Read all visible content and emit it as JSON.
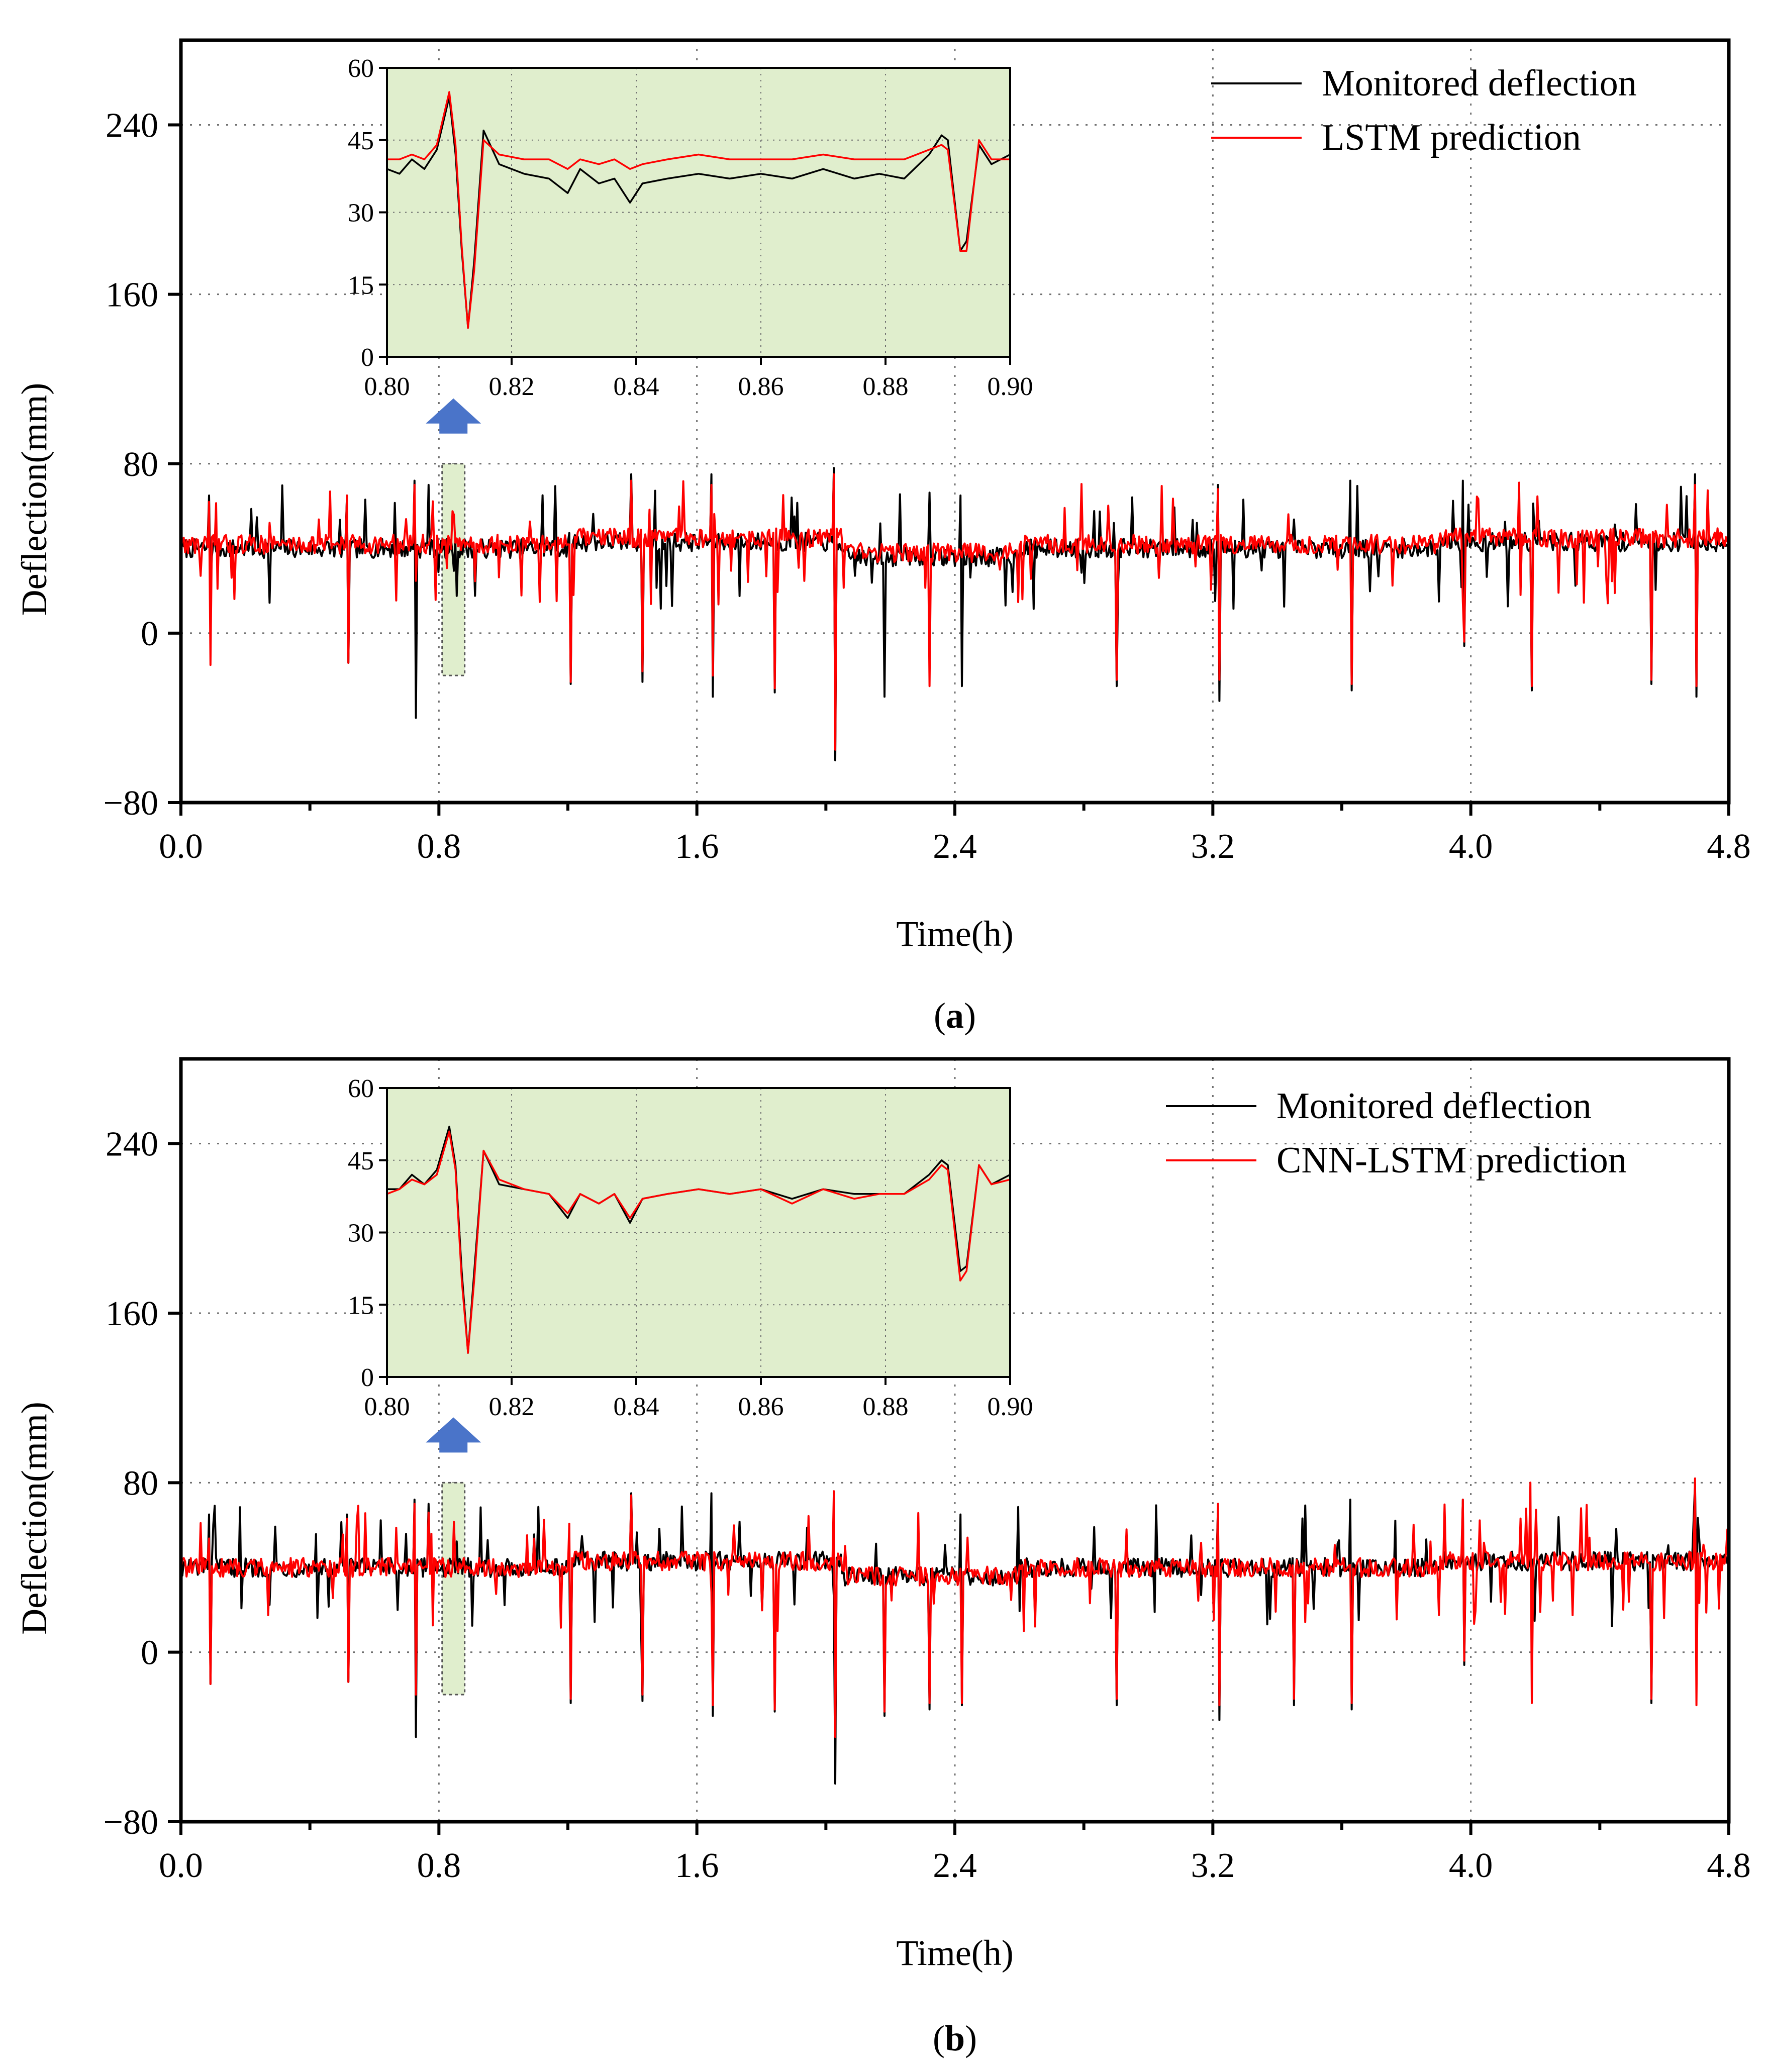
{
  "figure": {
    "panels": [
      {
        "caption_open": "(",
        "caption_letter": "a",
        "caption_close": ")",
        "legend": [
          {
            "label": "Monitored deflection",
            "color": "#000000"
          },
          {
            "label": "LSTM prediction",
            "color": "#ff0000"
          }
        ]
      },
      {
        "caption_open": "(",
        "caption_letter": "b",
        "caption_close": ")",
        "legend": [
          {
            "label": "Monitored deflection",
            "color": "#000000"
          },
          {
            "label": "CNN-LSTM prediction",
            "color": "#ff0000"
          }
        ]
      }
    ]
  },
  "colors": {
    "monitored": "#000000",
    "prediction": "#ff0000",
    "inset_background": "#e0eecd",
    "highlight_band": "#e0eecd",
    "arrow": "#4a74c9",
    "grid": "#707070"
  },
  "chart_data": [
    {
      "type": "line",
      "title": "",
      "xlabel": "Time(h)",
      "ylabel": "Deflection(mm)",
      "xlim": [
        0,
        4.8
      ],
      "ylim": [
        -80,
        280
      ],
      "xticks": [
        "0.0",
        "0.8",
        "1.6",
        "2.4",
        "3.2",
        "4.0",
        "4.8"
      ],
      "yticks": [
        "−80",
        "0",
        "80",
        "160",
        "240"
      ],
      "grid": true,
      "legend_position": "top-right",
      "highlight_range": {
        "x": [
          0.81,
          0.88
        ],
        "y": [
          -20,
          80
        ]
      },
      "series": [
        {
          "name": "Monitored deflection",
          "baseline": 40,
          "negative_spikes": [
            [
              0.09,
              -15
            ],
            [
              0.52,
              -14
            ],
            [
              0.73,
              -40
            ],
            [
              0.77,
              -17
            ],
            [
              1.21,
              -24
            ],
            [
              1.43,
              -23
            ],
            [
              1.65,
              -30
            ],
            [
              1.84,
              -28
            ],
            [
              2.03,
              -60
            ],
            [
              2.18,
              -30
            ],
            [
              2.32,
              -27
            ],
            [
              2.42,
              -25
            ],
            [
              2.9,
              -25
            ],
            [
              3.22,
              -32
            ],
            [
              3.45,
              -25
            ],
            [
              3.63,
              -27
            ],
            [
              3.98,
              -6
            ],
            [
              4.19,
              -27
            ],
            [
              4.56,
              -24
            ],
            [
              4.7,
              -30
            ]
          ],
          "positive_spikes": [
            [
              0.09,
              65
            ],
            [
              0.52,
              65
            ],
            [
              0.73,
              72
            ],
            [
              0.77,
              70
            ],
            [
              1.4,
              75
            ],
            [
              1.65,
              75
            ],
            [
              2.03,
              78
            ],
            [
              2.42,
              65
            ],
            [
              3.22,
              70
            ],
            [
              3.63,
              72
            ],
            [
              3.98,
              72
            ],
            [
              4.7,
              75
            ]
          ]
        },
        {
          "name": "LSTM prediction",
          "baseline": 42,
          "negative_spikes": [
            [
              0.09,
              -15
            ],
            [
              0.52,
              -14
            ],
            [
              0.73,
              -40
            ],
            [
              1.21,
              -23
            ],
            [
              1.43,
              -18
            ],
            [
              1.65,
              -20
            ],
            [
              1.84,
              -26
            ],
            [
              2.03,
              -55
            ],
            [
              2.32,
              -25
            ],
            [
              2.9,
              -22
            ],
            [
              3.22,
              -22
            ],
            [
              3.63,
              -24
            ],
            [
              3.98,
              -4
            ],
            [
              4.19,
              -25
            ],
            [
              4.56,
              -22
            ],
            [
              4.7,
              -25
            ]
          ],
          "positive_spikes": [
            [
              0.09,
              62
            ],
            [
              0.52,
              65
            ],
            [
              0.73,
              70
            ],
            [
              1.4,
              72
            ],
            [
              1.65,
              70
            ],
            [
              2.03,
              75
            ],
            [
              3.22,
              68
            ],
            [
              3.98,
              70
            ],
            [
              4.7,
              70
            ]
          ]
        }
      ],
      "inset": {
        "xlim": [
          0.8,
          0.9
        ],
        "ylim": [
          0,
          60
        ],
        "xticks": [
          "0.80",
          "0.82",
          "0.84",
          "0.86",
          "0.88",
          "0.90"
        ],
        "yticks": [
          "0",
          "15",
          "30",
          "45",
          "60"
        ],
        "series": [
          {
            "name": "Monitored deflection",
            "x": [
              0.8,
              0.802,
              0.804,
              0.806,
              0.808,
              0.81,
              0.811,
              0.812,
              0.813,
              0.814,
              0.8155,
              0.818,
              0.822,
              0.826,
              0.829,
              0.831,
              0.834,
              0.8365,
              0.839,
              0.841,
              0.845,
              0.85,
              0.855,
              0.86,
              0.865,
              0.87,
              0.875,
              0.879,
              0.883,
              0.887,
              0.889,
              0.89,
              0.892,
              0.893,
              0.895,
              0.897,
              0.9
            ],
            "y": [
              39,
              38,
              41,
              39,
              43,
              54,
              42,
              22,
              6,
              20,
              47,
              40,
              38,
              37,
              34,
              39,
              36,
              37,
              32,
              36,
              37,
              38,
              37,
              38,
              37,
              39,
              37,
              38,
              37,
              42,
              46,
              45,
              22,
              24,
              44,
              40,
              42
            ]
          },
          {
            "name": "LSTM prediction",
            "x": [
              0.8,
              0.802,
              0.804,
              0.806,
              0.808,
              0.81,
              0.811,
              0.812,
              0.813,
              0.814,
              0.8155,
              0.818,
              0.822,
              0.826,
              0.829,
              0.831,
              0.834,
              0.8365,
              0.839,
              0.841,
              0.845,
              0.85,
              0.855,
              0.86,
              0.865,
              0.87,
              0.875,
              0.879,
              0.883,
              0.887,
              0.889,
              0.89,
              0.892,
              0.893,
              0.895,
              0.897,
              0.9
            ],
            "y": [
              41,
              41,
              42,
              41,
              44,
              55,
              44,
              23,
              6,
              18,
              45,
              42,
              41,
              41,
              39,
              41,
              40,
              41,
              39,
              40,
              41,
              42,
              41,
              41,
              41,
              42,
              41,
              41,
              41,
              43,
              44,
              43,
              22,
              22,
              45,
              41,
              41
            ]
          }
        ]
      }
    },
    {
      "type": "line",
      "title": "",
      "xlabel": "Time(h)",
      "ylabel": "Deflection(mm)",
      "xlim": [
        0,
        4.8
      ],
      "ylim": [
        -80,
        280
      ],
      "xticks": [
        "0.0",
        "0.8",
        "1.6",
        "2.4",
        "3.2",
        "4.0",
        "4.8"
      ],
      "yticks": [
        "−80",
        "0",
        "80",
        "160",
        "240"
      ],
      "grid": true,
      "legend_position": "top-right",
      "highlight_range": {
        "x": [
          0.81,
          0.88
        ],
        "y": [
          -20,
          80
        ]
      },
      "series": [
        {
          "name": "Monitored deflection",
          "baseline": 40,
          "negative_spikes": [
            [
              0.09,
              -15
            ],
            [
              0.52,
              -14
            ],
            [
              0.73,
              -40
            ],
            [
              0.77,
              -17
            ],
            [
              1.21,
              -24
            ],
            [
              1.43,
              -23
            ],
            [
              1.65,
              -30
            ],
            [
              1.84,
              -28
            ],
            [
              2.03,
              -62
            ],
            [
              2.18,
              -30
            ],
            [
              2.32,
              -27
            ],
            [
              2.42,
              -25
            ],
            [
              2.9,
              -25
            ],
            [
              3.22,
              -32
            ],
            [
              3.45,
              -25
            ],
            [
              3.63,
              -27
            ],
            [
              3.98,
              -6
            ],
            [
              4.19,
              -27
            ],
            [
              4.56,
              -24
            ],
            [
              4.7,
              -30
            ]
          ],
          "positive_spikes": [
            [
              0.09,
              65
            ],
            [
              0.52,
              65
            ],
            [
              0.73,
              72
            ],
            [
              0.77,
              70
            ],
            [
              1.4,
              75
            ],
            [
              1.65,
              75
            ],
            [
              2.03,
              78
            ],
            [
              2.42,
              65
            ],
            [
              3.22,
              70
            ],
            [
              3.63,
              72
            ],
            [
              3.98,
              72
            ],
            [
              4.7,
              80
            ]
          ]
        },
        {
          "name": "CNN-LSTM prediction",
          "baseline": 40,
          "negative_spikes": [
            [
              0.09,
              -15
            ],
            [
              0.52,
              -14
            ],
            [
              0.73,
              -20
            ],
            [
              0.77,
              -15
            ],
            [
              1.21,
              -22
            ],
            [
              1.43,
              -20
            ],
            [
              1.65,
              -25
            ],
            [
              1.84,
              -27
            ],
            [
              2.03,
              -40
            ],
            [
              2.18,
              -28
            ],
            [
              2.32,
              -24
            ],
            [
              2.42,
              -24
            ],
            [
              2.9,
              -22
            ],
            [
              3.22,
              -25
            ],
            [
              3.45,
              -22
            ],
            [
              3.63,
              -24
            ],
            [
              3.98,
              -4
            ],
            [
              4.19,
              -24
            ],
            [
              4.56,
              -22
            ],
            [
              4.7,
              -25
            ]
          ],
          "positive_spikes": [
            [
              0.09,
              62
            ],
            [
              0.52,
              63
            ],
            [
              0.73,
              70
            ],
            [
              1.4,
              74
            ],
            [
              1.65,
              74
            ],
            [
              2.03,
              76
            ],
            [
              3.22,
              70
            ],
            [
              3.98,
              72
            ],
            [
              4.19,
              80
            ],
            [
              4.7,
              82
            ]
          ]
        }
      ],
      "inset": {
        "xlim": [
          0.8,
          0.9
        ],
        "ylim": [
          0,
          60
        ],
        "xticks": [
          "0.80",
          "0.82",
          "0.84",
          "0.86",
          "0.88",
          "0.90"
        ],
        "yticks": [
          "0",
          "15",
          "30",
          "45",
          "60"
        ],
        "series": [
          {
            "name": "Monitored deflection",
            "x": [
              0.8,
              0.802,
              0.804,
              0.806,
              0.808,
              0.81,
              0.811,
              0.812,
              0.813,
              0.814,
              0.8155,
              0.818,
              0.822,
              0.826,
              0.829,
              0.831,
              0.834,
              0.8365,
              0.839,
              0.841,
              0.845,
              0.85,
              0.855,
              0.86,
              0.865,
              0.87,
              0.875,
              0.879,
              0.883,
              0.887,
              0.889,
              0.89,
              0.892,
              0.893,
              0.895,
              0.897,
              0.9
            ],
            "y": [
              39,
              39,
              42,
              40,
              43,
              52,
              44,
              22,
              5,
              22,
              47,
              40,
              39,
              38,
              33,
              38,
              36,
              38,
              32,
              37,
              38,
              39,
              38,
              39,
              37,
              39,
              38,
              38,
              38,
              42,
              45,
              44,
              22,
              23,
              44,
              40,
              42
            ]
          },
          {
            "name": "CNN-LSTM prediction",
            "x": [
              0.8,
              0.802,
              0.804,
              0.806,
              0.808,
              0.81,
              0.811,
              0.812,
              0.813,
              0.814,
              0.8155,
              0.818,
              0.822,
              0.826,
              0.829,
              0.831,
              0.834,
              0.8365,
              0.839,
              0.841,
              0.845,
              0.85,
              0.855,
              0.86,
              0.865,
              0.87,
              0.875,
              0.879,
              0.883,
              0.887,
              0.889,
              0.89,
              0.892,
              0.893,
              0.895,
              0.897,
              0.9
            ],
            "y": [
              38,
              39,
              41,
              40,
              42,
              51,
              43,
              20,
              5,
              20,
              47,
              41,
              39,
              38,
              34,
              38,
              36,
              38,
              33,
              37,
              38,
              39,
              38,
              39,
              36,
              39,
              37,
              38,
              38,
              41,
              44,
              43,
              20,
              22,
              44,
              40,
              41
            ]
          }
        ]
      }
    }
  ]
}
